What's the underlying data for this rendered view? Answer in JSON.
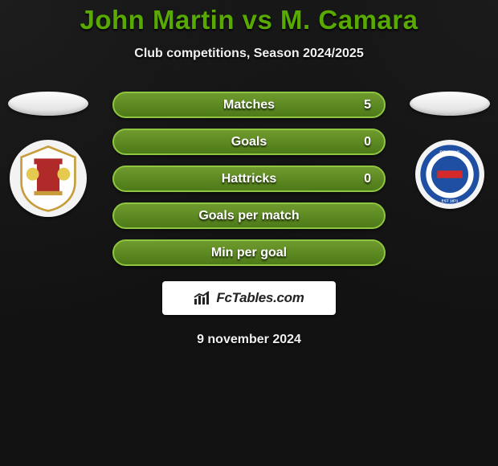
{
  "title": "John Martin vs M. Camara",
  "subtitle": "Club competitions, Season 2024/2025",
  "date": "9 november 2024",
  "brand": "FcTables.com",
  "left": {
    "club_label": "Stevenage FC"
  },
  "right": {
    "club_label": "Reading FC"
  },
  "bars": [
    {
      "label": "Matches",
      "right_value": "5"
    },
    {
      "label": "Goals",
      "right_value": "0"
    },
    {
      "label": "Hattricks",
      "right_value": "0"
    },
    {
      "label": "Goals per match",
      "right_value": ""
    },
    {
      "label": "Min per goal",
      "right_value": ""
    }
  ],
  "colors": {
    "title": "#58a900",
    "bar_gradient": [
      "#6f9a2e",
      "#4d7a18"
    ],
    "bar_border": "#8ec63f",
    "background": "#121212",
    "text_light": "#f0f0f0"
  }
}
